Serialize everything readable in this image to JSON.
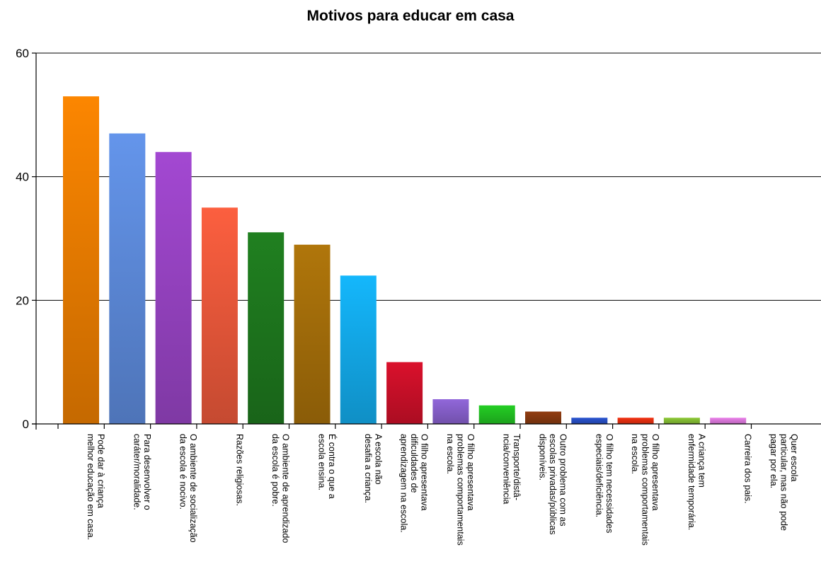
{
  "chart_data": {
    "type": "bar",
    "title": "Motivos para educar em casa",
    "xlabel": "",
    "ylabel": "",
    "ylim": [
      0,
      60
    ],
    "yticks": [
      0,
      20,
      40,
      60
    ],
    "grid": true,
    "categories": [
      [
        "Pode dar à criança",
        "melhor educação em casa."
      ],
      [
        "Para desenvolver o",
        "caráter/moralidade."
      ],
      [
        "O ambiente de socialização",
        "da escola é nocivo."
      ],
      [
        "Razões religiosas."
      ],
      [
        "O ambiente de aprendizado",
        "da escola é pobre."
      ],
      [
        "É contra o que a",
        "escola ensina."
      ],
      [
        "A escola não",
        "desafia a criança."
      ],
      [
        "O filho apresentava",
        "dificuldades de",
        "aprendizagem na escola."
      ],
      [
        "O filho apresentava",
        "problemas comportamentais",
        "na escola."
      ],
      [
        "Transporte/distâ-",
        "ncia/conveniência"
      ],
      [
        "Outro problema com as",
        "escolas privadas/públicas",
        "disponíveis."
      ],
      [
        "O filho tem necessidades",
        "especiais/deficiência."
      ],
      [
        "O filho apresentava",
        "problemas comportamentais",
        "na escola."
      ],
      [
        "A criança tem",
        "enfermidade temporária."
      ],
      [
        "Carreira dos pais."
      ],
      [
        "Quer escola",
        "particular, mas não pode",
        "pagar por ela."
      ]
    ],
    "values": [
      53,
      47,
      44,
      35,
      31,
      29,
      24,
      10,
      4,
      3,
      2,
      1,
      1,
      1,
      1,
      0
    ],
    "colors": [
      "#f08000",
      "#5f8ee0",
      "#9b45c8",
      "#f05a3c",
      "#1e7a1e",
      "#a8700a",
      "#13aef0",
      "#d0102a",
      "#8a62d0",
      "#22c422",
      "#8a3a10",
      "#2850c8",
      "#e83010",
      "#86c034",
      "#e07ae0",
      "#c0a0c0"
    ]
  }
}
